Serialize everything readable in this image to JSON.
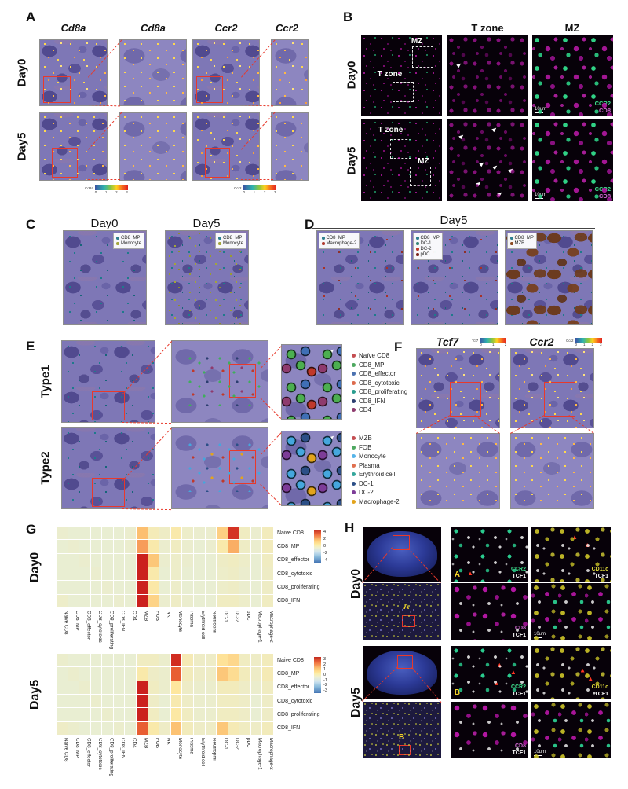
{
  "figure": {
    "panels": {
      "A": {
        "label": "A",
        "columns": [
          "Cd8a",
          "Cd8a",
          "Ccr2",
          "Ccr2"
        ],
        "rows": [
          "Day0",
          "Day5"
        ],
        "colorbars": [
          {
            "label": "Cd8a",
            "ticks": [
              "0",
              "1",
              "2",
              "3"
            ]
          },
          {
            "label": "Ccr2",
            "ticks": [
              "0",
              "1",
              "2",
              "3"
            ]
          }
        ]
      },
      "B": {
        "label": "B",
        "columns": [
          "T zone",
          "MZ"
        ],
        "rows": [
          "Day0",
          "Day5"
        ],
        "regions": {
          "mz": "MZ",
          "tzone": "T zone"
        },
        "scale_bar": "10um",
        "channels": [
          {
            "text": "CCR2",
            "color": "#3fe08d"
          },
          {
            "text": "CD8",
            "color": "#d36ad3"
          }
        ]
      },
      "C": {
        "label": "C",
        "columns": [
          "Day0",
          "Day5"
        ],
        "legend": [
          {
            "label": "CD8_MP",
            "color": "#2e7f8f"
          },
          {
            "label": "Monocyte",
            "color": "#a3a53a"
          }
        ]
      },
      "D": {
        "label": "D",
        "header": "Day5",
        "legends": [
          [
            {
              "label": "CD8_MP",
              "color": "#2e7f8f"
            },
            {
              "label": "Macrophage-2",
              "color": "#b03a2e"
            }
          ],
          [
            {
              "label": "CD8_MP",
              "color": "#2e7f8f"
            },
            {
              "label": "DC-1",
              "color": "#38857a"
            },
            {
              "label": "DC-2",
              "color": "#c0392b"
            },
            {
              "label": "pDC",
              "color": "#7b241c"
            }
          ],
          [
            {
              "label": "CD8_MP",
              "color": "#2e7f8f"
            },
            {
              "label": "MZB",
              "color": "#8c4a21"
            }
          ]
        ]
      },
      "E": {
        "label": "E",
        "rows": [
          "Type1",
          "Type2"
        ],
        "legend_type1": [
          {
            "label": "Naïve CD8",
            "color": "#c44e52"
          },
          {
            "label": "CD8_MP",
            "color": "#4ea860"
          },
          {
            "label": "CD8_effector",
            "color": "#4c72b0"
          },
          {
            "label": "CD8_cytotoxic",
            "color": "#dd6b4d"
          },
          {
            "label": "CD8_proliferating",
            "color": "#2a9d8f"
          },
          {
            "label": "CD8_IFN",
            "color": "#2c3e70"
          },
          {
            "label": "CD4",
            "color": "#8e3b6e"
          }
        ],
        "legend_type2": [
          {
            "label": "MZB",
            "color": "#c44e52"
          },
          {
            "label": "FOB",
            "color": "#4ea860"
          },
          {
            "label": "Monocyte",
            "color": "#56b4e9"
          },
          {
            "label": "Plasma",
            "color": "#e0704f"
          },
          {
            "label": "Erythroid cell",
            "color": "#35a79c"
          },
          {
            "label": "DC-1",
            "color": "#2c4f87"
          },
          {
            "label": "DC-2",
            "color": "#7d3c98"
          },
          {
            "label": "Macrophage-2",
            "color": "#e3a41c"
          }
        ]
      },
      "F": {
        "label": "F",
        "genes": [
          {
            "name": "Tcf7",
            "cbar_label": "Tcf7",
            "ticks": [
              "0",
              "1",
              "2"
            ]
          },
          {
            "name": "Ccr2",
            "cbar_label": "Ccr2",
            "ticks": [
              "0",
              "1",
              "2",
              "3"
            ]
          }
        ]
      },
      "G": {
        "label": "G",
        "row_titles": [
          "Day0",
          "Day5"
        ]
      },
      "H": {
        "label": "H",
        "rows": [
          "Day0",
          "Day5"
        ],
        "markers": [
          "A",
          "B"
        ],
        "stains": [
          {
            "line1": "CCR2",
            "color1": "#3fe08d",
            "line2": "TCF1"
          },
          {
            "line1": "CD11c",
            "color1": "#ddd83a",
            "line2": "TCF1"
          },
          {
            "line1": "CD8",
            "color1": "#d36ad3",
            "line2": "TCF1"
          }
        ],
        "scale_bar": "10um"
      }
    }
  },
  "chart_data": [
    {
      "type": "heatmap",
      "title": "Day0",
      "columns": [
        "Naive CD8",
        "CD8_MP",
        "CD8_effector",
        "CD8_cytotoxic",
        "CD8_proliferating",
        "CD8_IFN",
        "CD4",
        "MZB",
        "FOB",
        "NK",
        "Monocyte",
        "Plasma",
        "Erythroid cell",
        "Neutrophil",
        "DC-1",
        "DC-2",
        "pDC",
        "Macrophage-1",
        "Macrophage-2"
      ],
      "rows": [
        "Naive CD8",
        "CD8_MP",
        "CD8_effector",
        "CD8_cytotoxic",
        "CD8_proliferating",
        "CD8_IFN"
      ],
      "values": [
        [
          0.1,
          0,
          0,
          0,
          0,
          0,
          0.1,
          2.2,
          0.6,
          0.3,
          0.9,
          0.2,
          0.1,
          0.1,
          1.8,
          3.8,
          0.4,
          0.1,
          0.5
        ],
        [
          0,
          0.1,
          0,
          0,
          0,
          0,
          0.1,
          2.6,
          0.9,
          0.1,
          0.4,
          0.1,
          0,
          0.1,
          0.9,
          2.4,
          0.3,
          0.1,
          0.5
        ],
        [
          0,
          0,
          0.1,
          0,
          0,
          0,
          0,
          4.2,
          2.0,
          0.1,
          0.2,
          0.1,
          0,
          0,
          0.3,
          0.4,
          0.2,
          0,
          0.4
        ],
        [
          0,
          0,
          0,
          0.1,
          0,
          0,
          0,
          4.5,
          0.9,
          0,
          0.2,
          0,
          0,
          0,
          0.2,
          0.3,
          0.1,
          0,
          0.3
        ],
        [
          0,
          0,
          0,
          0,
          0.1,
          0,
          0,
          4.5,
          1.0,
          0,
          0.2,
          0,
          0,
          0,
          0.2,
          0.3,
          0.1,
          0,
          0.3
        ],
        [
          0.2,
          0,
          0,
          0,
          0,
          0.1,
          0,
          4.0,
          1.7,
          0.1,
          0.3,
          0.1,
          0,
          0,
          0.4,
          0.4,
          0.2,
          0,
          0.4
        ]
      ],
      "vmin": -4,
      "vmax": 4,
      "colorbar_ticks": [
        "4",
        "2",
        "0",
        "-2",
        "-4"
      ]
    },
    {
      "type": "heatmap",
      "title": "Day5",
      "columns": [
        "Naive CD8",
        "CD8_MP",
        "CD8_effector",
        "CD8_cytotoxic",
        "CD8_proliferating",
        "CD8_IFN",
        "CD4",
        "MZB",
        "FOB",
        "NK",
        "Monocyte",
        "Plasma",
        "Erythroid cell",
        "Neutrophil",
        "DC-1",
        "DC-2",
        "pDC",
        "Macrophage-1",
        "Macrophage-2"
      ],
      "rows": [
        "Naive CD8",
        "CD8_MP",
        "CD8_effector",
        "CD8_cytotoxic",
        "CD8_proliferating",
        "CD8_IFN"
      ],
      "values": [
        [
          0.1,
          0,
          0,
          0,
          0,
          0,
          0,
          0.3,
          0.3,
          0.1,
          2.9,
          0.5,
          0.2,
          0.2,
          1.0,
          1.2,
          0.3,
          0.2,
          0.4
        ],
        [
          0,
          0.1,
          0,
          0,
          0,
          0,
          0,
          0.7,
          0.2,
          0.1,
          2.5,
          0.4,
          0.2,
          0.2,
          1.5,
          1.1,
          0.4,
          0.2,
          0.5
        ],
        [
          0,
          0,
          0.1,
          0,
          0,
          0,
          0,
          3.0,
          0.3,
          0.1,
          0.9,
          0.2,
          0.1,
          0.1,
          0.4,
          0.4,
          0.2,
          0.1,
          0.3
        ],
        [
          0,
          0,
          0,
          0.1,
          0,
          0,
          0,
          3.1,
          0.2,
          0,
          0.6,
          0.2,
          0.1,
          0.1,
          0.3,
          0.3,
          0.2,
          0,
          0.2
        ],
        [
          0,
          0,
          0,
          0,
          0.1,
          0,
          0,
          3.1,
          0.3,
          0,
          0.8,
          0.3,
          0.1,
          0.1,
          0.3,
          0.3,
          0.2,
          0,
          0.2
        ],
        [
          0.2,
          0.1,
          0,
          0,
          0,
          0.1,
          0,
          2.5,
          0.7,
          0.2,
          1.6,
          0.4,
          0.2,
          0.2,
          1.5,
          0.5,
          0.3,
          0.2,
          0.4
        ]
      ],
      "vmin": -3,
      "vmax": 3,
      "colorbar_ticks": [
        "3",
        "2",
        "1",
        "0",
        "-1",
        "-2",
        "-3"
      ]
    }
  ]
}
